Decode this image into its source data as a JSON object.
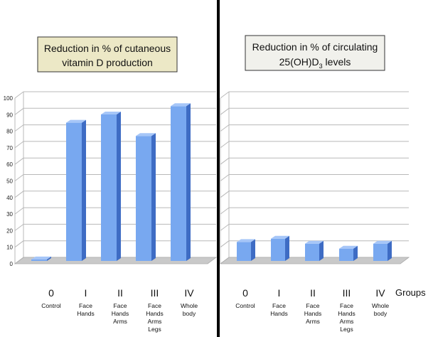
{
  "panels": [
    {
      "title_line1": "Reduction in % of cutaneous",
      "title_line2": "vitamin D production",
      "box_color": "#ece8c6"
    },
    {
      "title_line1": "Reduction in % of circulating",
      "title_line2_main": "25(OH)D",
      "title_line2_sub": "3",
      "title_line2_end": " levels",
      "box_color": "#f1f1ec"
    }
  ],
  "groups_label": "Groups",
  "colors": {
    "bar_front": "#78a8f0",
    "bar_side": "#3e6cc4",
    "bar_top": "#a6c6f8",
    "grid": "#b8b8b8",
    "floor": "#c9c9c9",
    "divider": "#000000"
  },
  "chart_data": [
    {
      "type": "bar",
      "title": "Reduction in % of cutaneous vitamin D production",
      "ylim": [
        0,
        100
      ],
      "yticks": [
        "0",
        "10",
        "20",
        "30",
        "40",
        "50",
        "60",
        "70",
        "80",
        "90",
        "100"
      ],
      "grid": true,
      "categories": [
        {
          "roman": "0",
          "lines": [
            "Control"
          ]
        },
        {
          "roman": "I",
          "lines": [
            "Face",
            "Hands"
          ]
        },
        {
          "roman": "II",
          "lines": [
            "Face",
            "Hands",
            "Arms"
          ]
        },
        {
          "roman": "III",
          "lines": [
            "Face",
            "Hands",
            "Arms",
            "Legs"
          ]
        },
        {
          "roman": "IV",
          "lines": [
            "Whole",
            "body"
          ]
        }
      ],
      "values": [
        0.5,
        83,
        88,
        75,
        93
      ]
    },
    {
      "type": "bar",
      "title": "Reduction in % of circulating 25(OH)D3 levels",
      "ylim": [
        0,
        100
      ],
      "grid": true,
      "categories": [
        {
          "roman": "0",
          "lines": [
            "Control"
          ]
        },
        {
          "roman": "I",
          "lines": [
            "Face",
            "Hands"
          ]
        },
        {
          "roman": "II",
          "lines": [
            "Face",
            "Hands",
            "Arms"
          ]
        },
        {
          "roman": "III",
          "lines": [
            "Face",
            "Hands",
            "Arms",
            "Legs"
          ]
        },
        {
          "roman": "IV",
          "lines": [
            "Whole",
            "body"
          ]
        }
      ],
      "values": [
        11,
        13,
        10,
        7,
        10
      ]
    }
  ]
}
